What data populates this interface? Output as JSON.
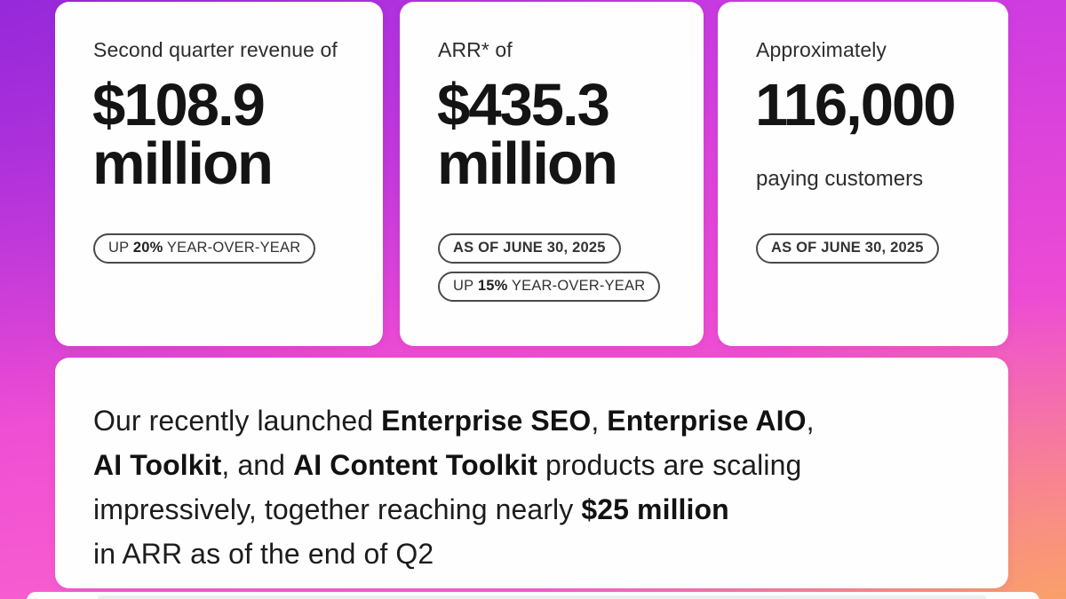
{
  "background": {
    "gradient_top_left": "#9127d8",
    "gradient_top_right": "#c438e4",
    "gradient_bottom_left": "#fc63ce",
    "gradient_bottom_right": "#f9a265"
  },
  "card_background": "#fefefe",
  "cards": {
    "revenue": {
      "title": "Second quarter revenue of",
      "value_line1": "$108.9",
      "value_line2": "million",
      "badge_yoy": {
        "prefix": "UP ",
        "bold": "20%",
        "suffix": " YEAR-OVER-YEAR"
      }
    },
    "arr": {
      "title": "ARR* of",
      "value_line1": "$435.3",
      "value_line2": "million",
      "badge_date": "AS OF JUNE 30, 2025",
      "badge_yoy": {
        "prefix": "UP ",
        "bold": "15%",
        "suffix": " YEAR-OVER-YEAR"
      }
    },
    "customers": {
      "title": "Approximately",
      "value": "116,000",
      "subtitle": "paying customers",
      "badge_date": "AS OF JUNE 30, 2025"
    }
  },
  "highlight": {
    "line1": {
      "t1": "Our recently launched ",
      "b1": "Enterprise SEO",
      "t2": ", ",
      "b2": "Enterprise AIO",
      "t3": ","
    },
    "line2": {
      "b1": "AI Toolkit",
      "t1": ", and ",
      "b2": "AI Content Toolkit",
      "t2": " products are scaling"
    },
    "line3": {
      "t1": "impressively, together reaching nearly ",
      "b1": "$25 million"
    },
    "line4": {
      "t1": "in ARR as of the end of Q2"
    }
  }
}
